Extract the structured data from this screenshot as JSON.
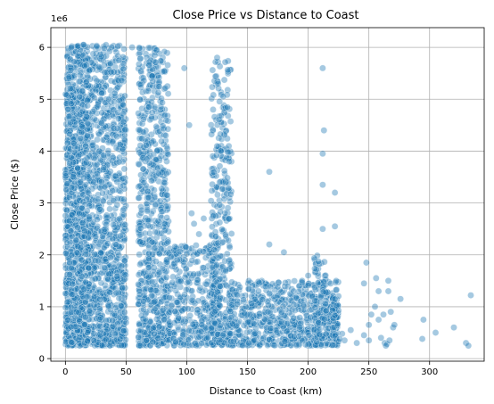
{
  "chart_data": {
    "type": "scatter",
    "title": "Close Price vs Distance to Coast",
    "xlabel": "Distance to Coast (km)",
    "ylabel": "Close Price ($)",
    "y_offset_label": "1e6",
    "xlim": [
      -12,
      345
    ],
    "ylim": [
      -0.05,
      6.38
    ],
    "x_ticks": [
      0,
      50,
      100,
      150,
      200,
      250,
      300
    ],
    "y_ticks": [
      0,
      1,
      2,
      3,
      4,
      5,
      6
    ],
    "grid": true,
    "point_color": "#1f77b4",
    "point_alpha": 0.4,
    "clusters": [
      {
        "x_range": [
          0,
          50
        ],
        "y_range": [
          0.25,
          6.05
        ],
        "count": 1600
      },
      {
        "x_range": [
          0,
          20
        ],
        "y_range": [
          0.25,
          6.05
        ],
        "count": 500
      },
      {
        "x_range": [
          60,
          85
        ],
        "y_range": [
          0.25,
          6.0
        ],
        "count": 700
      },
      {
        "x_range": [
          85,
          125
        ],
        "y_range": [
          0.25,
          2.2
        ],
        "count": 350
      },
      {
        "x_range": [
          120,
          137
        ],
        "y_range": [
          0.25,
          5.8
        ],
        "count": 350
      },
      {
        "x_range": [
          135,
          225
        ],
        "y_range": [
          0.25,
          1.5
        ],
        "count": 650
      },
      {
        "x_range": [
          205,
          215
        ],
        "y_range": [
          0.25,
          2.0
        ],
        "count": 80
      },
      {
        "x_range": [
          220,
          225
        ],
        "y_range": [
          0.25,
          1.3
        ],
        "count": 40
      }
    ],
    "points": [
      [
        5,
        6.0
      ],
      [
        15,
        6.05
      ],
      [
        55,
        6.0
      ],
      [
        75,
        5.95
      ],
      [
        98,
        5.6
      ],
      [
        125,
        5.8
      ],
      [
        212,
        5.6
      ],
      [
        213,
        4.4
      ],
      [
        212,
        3.95
      ],
      [
        222,
        3.2
      ],
      [
        212,
        3.35
      ],
      [
        168,
        3.6
      ],
      [
        222,
        2.55
      ],
      [
        212,
        2.5
      ],
      [
        168,
        2.2
      ],
      [
        180,
        2.05
      ],
      [
        248,
        1.85
      ],
      [
        102,
        4.5
      ],
      [
        128,
        4.0
      ],
      [
        135,
        3.8
      ],
      [
        104,
        2.8
      ],
      [
        106,
        2.6
      ],
      [
        110,
        2.4
      ],
      [
        114,
        2.7
      ],
      [
        246,
        1.45
      ],
      [
        256,
        1.55
      ],
      [
        266,
        1.5
      ],
      [
        258,
        1.3
      ],
      [
        276,
        1.15
      ],
      [
        266,
        1.3
      ],
      [
        252,
        0.85
      ],
      [
        255,
        1.0
      ],
      [
        250,
        0.65
      ],
      [
        258,
        0.75
      ],
      [
        260,
        0.4
      ],
      [
        263,
        0.3
      ],
      [
        265,
        0.28
      ],
      [
        267,
        0.35
      ],
      [
        264,
        0.25
      ],
      [
        270,
        0.6
      ],
      [
        271,
        0.65
      ],
      [
        262,
        0.85
      ],
      [
        295,
        0.75
      ],
      [
        294,
        0.38
      ],
      [
        305,
        0.5
      ],
      [
        320,
        0.6
      ],
      [
        330,
        0.3
      ],
      [
        332,
        0.25
      ],
      [
        334,
        1.22
      ],
      [
        230,
        0.35
      ],
      [
        240,
        0.3
      ],
      [
        246,
        0.45
      ],
      [
        250,
        0.35
      ],
      [
        235,
        0.55
      ],
      [
        228,
        0.48
      ],
      [
        226,
        0.38
      ],
      [
        268,
        0.9
      ],
      [
        200,
        1.6
      ],
      [
        195,
        1.5
      ],
      [
        188,
        1.3
      ]
    ]
  }
}
